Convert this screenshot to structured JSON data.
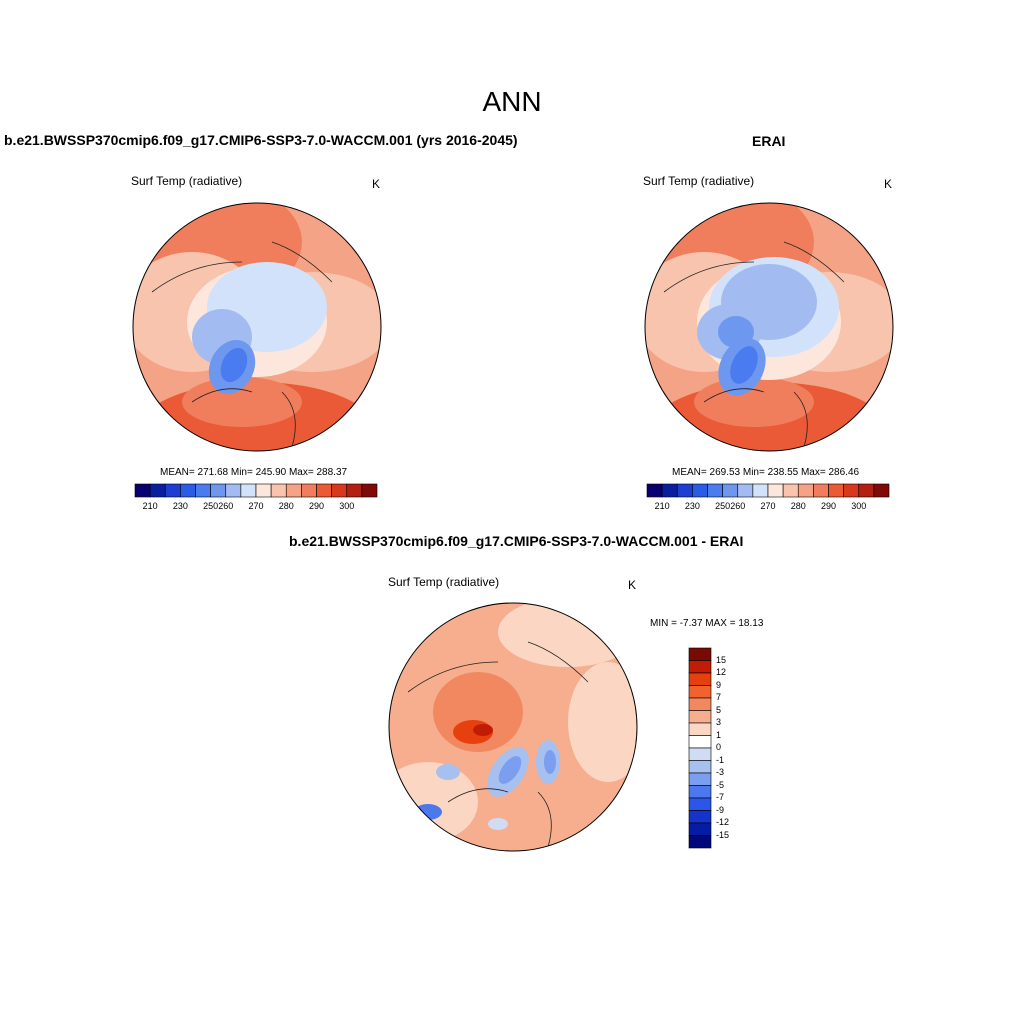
{
  "title": "ANN",
  "panels": {
    "model": {
      "case_title": "b.e21.BWSSP370cmip6.f09_g17.CMIP6-SSP3-7.0-WACCM.001 (yrs 2016-2045)",
      "variable": "Surf Temp (radiative)",
      "units": "K",
      "stats": "MEAN= 271.68  Min= 245.90  Max= 288.37"
    },
    "obs": {
      "case_title": "ERAI",
      "variable": "Surf Temp (radiative)",
      "units": "K",
      "stats": "MEAN= 269.53  Min= 238.55  Max= 286.46"
    },
    "diff": {
      "case_title": "b.e21.BWSSP370cmip6.f09_g17.CMIP6-SSP3-7.0-WACCM.001 - ERAI",
      "variable": "Surf Temp (radiative)",
      "units": "K",
      "stats": "MIN =  -7.37 MAX =  18.13"
    }
  },
  "temp_colorbar": {
    "colors": [
      "#08006e",
      "#0a1ea0",
      "#1c3ed2",
      "#2a5ce6",
      "#4a7cf0",
      "#6e98f0",
      "#a2bcf2",
      "#d2e2fa",
      "#fde7dc",
      "#f8c4ae",
      "#f4a386",
      "#f07e5c",
      "#ea5a36",
      "#d8381c",
      "#b42010",
      "#800a06"
    ],
    "ticks": [
      "210",
      "230",
      "250",
      "260",
      "270",
      "280",
      "290",
      "300"
    ]
  },
  "diff_colorbar": {
    "colors": [
      "#7a0a04",
      "#c01c06",
      "#e6400e",
      "#f2622e",
      "#f28860",
      "#f6ae8e",
      "#fbd6c2",
      "#ffffff",
      "#cfdcf4",
      "#a6c0f0",
      "#7c9ef0",
      "#4c78ee",
      "#2c56e8",
      "#1434cc",
      "#061ca4",
      "#00087a"
    ],
    "ticks": [
      "15",
      "12",
      "9",
      "7",
      "5",
      "3",
      "1",
      "0",
      "-1",
      "-3",
      "-5",
      "-7",
      "-9",
      "-12",
      "-15"
    ]
  }
}
